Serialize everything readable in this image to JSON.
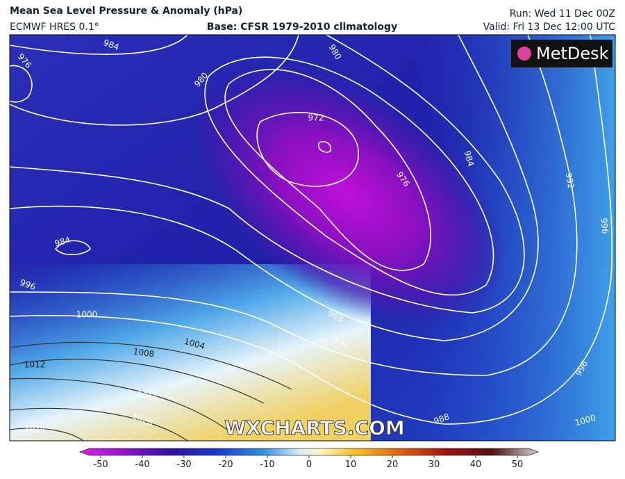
{
  "header": {
    "title": "Mean Sea Level Pressure & Anomaly (hPa)",
    "model": "ECMWF HRES 0.1°",
    "base": "Base: CFSR 1979-2010 climatology",
    "run": "Run: Wed 11 Dec 00Z",
    "valid": "Valid: Fri 13 Dec 12:00 UTC"
  },
  "map": {
    "contour_labels": [
      976,
      984,
      980,
      980,
      972,
      976,
      984,
      992,
      996,
      984,
      996,
      1000,
      1004,
      988,
      992,
      1008,
      1012,
      1016,
      1020,
      1024,
      996,
      988,
      1000
    ]
  },
  "logos": {
    "metdesk": "MetDesk",
    "wxcharts": "WXCHARTS.COM"
  },
  "colorbar": {
    "range": [
      -55,
      55
    ],
    "ticks": [
      -50,
      -40,
      -30,
      -20,
      -10,
      0,
      10,
      20,
      30,
      40,
      50
    ]
  }
}
